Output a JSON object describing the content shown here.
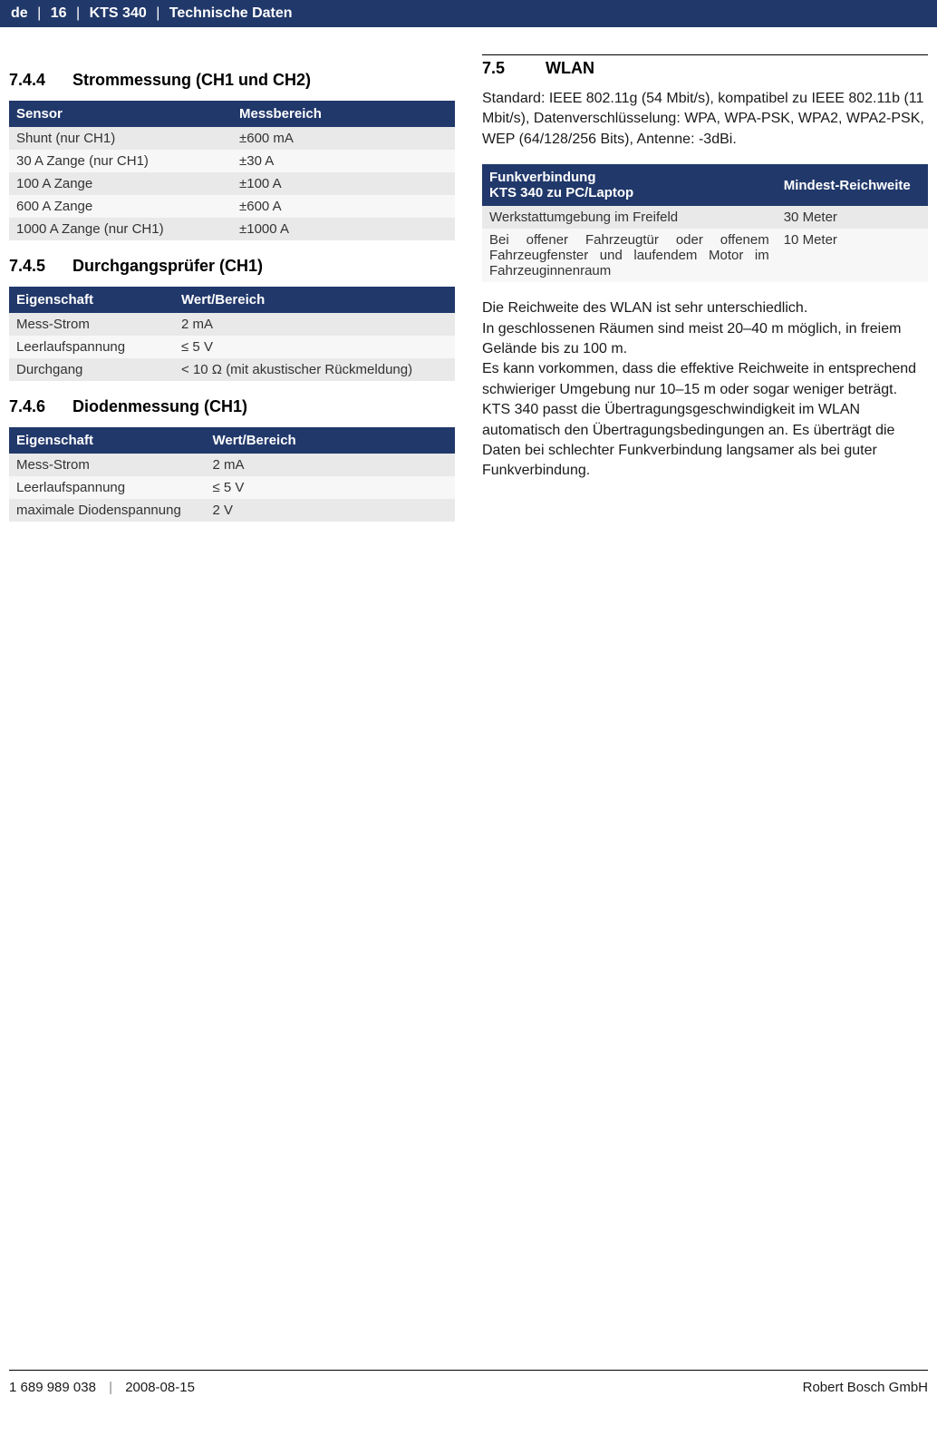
{
  "header": {
    "lang": "de",
    "page": "16",
    "model": "KTS 340",
    "section": "Technische Daten"
  },
  "left": {
    "s744": {
      "num": "7.4.4",
      "title": "Strommessung (CH1 und CH2)",
      "headers": [
        "Sensor",
        "Messbereich"
      ],
      "rows": [
        [
          "Shunt (nur CH1)",
          "±600 mA"
        ],
        [
          "30 A Zange (nur CH1)",
          "±30 A"
        ],
        [
          "100 A Zange",
          "±100 A"
        ],
        [
          "600 A Zange",
          "±600 A"
        ],
        [
          "1000 A Zange (nur CH1)",
          "±1000 A"
        ]
      ],
      "col1_width": "50%"
    },
    "s745": {
      "num": "7.4.5",
      "title": "Durchgangsprüfer (CH1)",
      "headers": [
        "Eigenschaft",
        "Wert/Bereich"
      ],
      "rows": [
        [
          "Mess-Strom",
          "2 mA"
        ],
        [
          "Leerlaufspannung",
          "≤ 5 V"
        ],
        [
          "Durchgang",
          "< 10 Ω  (mit akustischer Rückmeldung)"
        ]
      ],
      "col1_width": "37%"
    },
    "s746": {
      "num": "7.4.6",
      "title": "Diodenmessung (CH1)",
      "headers": [
        "Eigenschaft",
        "Wert/Bereich"
      ],
      "rows": [
        [
          "Mess-Strom",
          "2 mA"
        ],
        [
          "Leerlaufspannung",
          "≤ 5 V"
        ],
        [
          "maximale Diodenspannung",
          "2 V"
        ]
      ],
      "col1_width": "44%"
    }
  },
  "right": {
    "s75": {
      "num": "7.5",
      "title": "WLAN",
      "intro": "Standard: IEEE 802.11g (54 Mbit/s), kompatibel zu IEEE 802.11b (11 Mbit/s), Datenverschlüsselung: WPA, WPA-PSK, WPA2, WPA2-PSK, WEP (64/128/256 Bits), Antenne: -3dBi.",
      "headers": [
        "Funkverbindung",
        "KTS 340 zu PC/Laptop",
        "Mindest-Reichweite"
      ],
      "rows": [
        [
          "Werkstattumgebung im Freifeld",
          "30 Meter"
        ],
        [
          "Bei offener Fahrzeugtür oder offenem Fahrzeugfenster und laufendem Motor im Fahrzeuginnenraum",
          "10 Meter"
        ]
      ],
      "col1_width": "66%",
      "para": "Die Reichweite des WLAN ist sehr unterschiedlich.\nIn geschlossenen Räumen sind meist 20–40 m möglich, in freiem Gelände bis zu 100 m.\nEs kann vorkommen, dass die effektive Reichweite in entsprechend schwieriger Umgebung nur 10–15 m oder sogar weniger beträgt.\nKTS 340 passt die Übertragungsgeschwindigkeit im WLAN automatisch den Übertragungsbedingungen an. Es überträgt die Daten bei schlechter Funkverbindung langsamer als bei guter Funkverbindung."
    }
  },
  "footer": {
    "docnum": "1 689 989 038",
    "date": "2008-08-15",
    "company": "Robert Bosch GmbH"
  }
}
